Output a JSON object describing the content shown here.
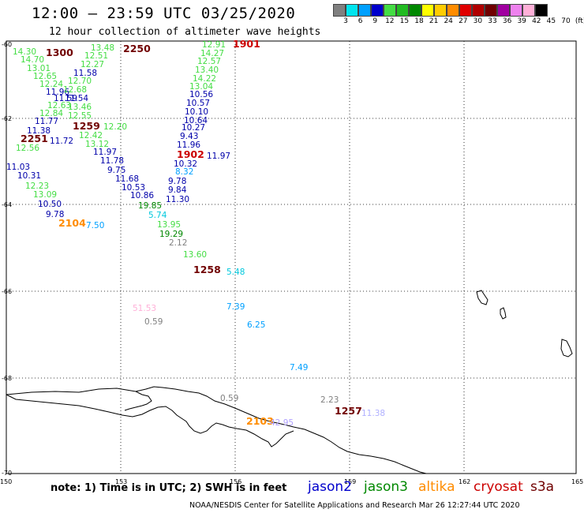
{
  "header": {
    "title": "12:00 – 23:59 UTC 03/25/2020",
    "subtitle": "12 hour collection of altimeter wave heights"
  },
  "legend": {
    "unit": "(ft)",
    "colors": [
      "#808080",
      "#00e5ee",
      "#00a0ff",
      "#0000cc",
      "#44dd44",
      "#22bb22",
      "#008800",
      "#ffff00",
      "#ffcc00",
      "#ff8c00",
      "#e00000",
      "#b00000",
      "#700000",
      "#a000a0",
      "#ee82ee",
      "#ffb0d8",
      "#000000"
    ],
    "labels": [
      "3",
      "6",
      "9",
      "12",
      "15",
      "18",
      "21",
      "24",
      "27",
      "30",
      "33",
      "36",
      "39",
      "42",
      "45",
      "70"
    ]
  },
  "axes": {
    "y_labels": [
      "-60",
      "-62",
      "-64",
      "-66",
      "-68",
      "-70"
    ],
    "x_labels": [
      "150",
      "153",
      "156",
      "159",
      "162",
      "165"
    ]
  },
  "map_labels": [
    {
      "t": "14.30",
      "c": "#44dd44"
    },
    {
      "t": "1300",
      "c": "#700000",
      "b": true
    },
    {
      "t": "13.48",
      "c": "#44dd44"
    },
    {
      "t": "2250",
      "c": "#700000",
      "b": true
    },
    {
      "t": "12.91",
      "c": "#44dd44"
    },
    {
      "t": "1901",
      "c": "#cc0000",
      "b": true
    },
    {
      "t": "14.70",
      "c": "#44dd44"
    },
    {
      "t": "12.51",
      "c": "#44dd44"
    },
    {
      "t": "14.27",
      "c": "#44dd44"
    },
    {
      "t": "13.01",
      "c": "#44dd44"
    },
    {
      "t": "12.27",
      "c": "#44dd44"
    },
    {
      "t": "12.57",
      "c": "#44dd44"
    },
    {
      "t": "12.65",
      "c": "#44dd44"
    },
    {
      "t": "11.58",
      "c": "#0000aa"
    },
    {
      "t": "13.40",
      "c": "#44dd44"
    },
    {
      "t": "12.24",
      "c": "#44dd44"
    },
    {
      "t": "12.70",
      "c": "#44dd44"
    },
    {
      "t": "14.22",
      "c": "#44dd44"
    },
    {
      "t": "11.96",
      "c": "#0000aa"
    },
    {
      "t": "12.68",
      "c": "#44dd44"
    },
    {
      "t": "13.04",
      "c": "#44dd44"
    },
    {
      "t": "11.59",
      "c": "#0000aa"
    },
    {
      "t": "11.54",
      "c": "#0000aa"
    },
    {
      "t": "10.56",
      "c": "#0000aa"
    },
    {
      "t": "12.63",
      "c": "#44dd44"
    },
    {
      "t": "13.46",
      "c": "#44dd44"
    },
    {
      "t": "10.57",
      "c": "#0000aa"
    },
    {
      "t": "12.84",
      "c": "#44dd44"
    },
    {
      "t": "12.55",
      "c": "#44dd44"
    },
    {
      "t": "10.10",
      "c": "#0000aa"
    },
    {
      "t": "11.77",
      "c": "#0000aa"
    },
    {
      "t": "10.64",
      "c": "#0000aa"
    },
    {
      "t": "11.38",
      "c": "#0000aa"
    },
    {
      "t": "1259",
      "c": "#700000",
      "b": true
    },
    {
      "t": "12.20",
      "c": "#44dd44"
    },
    {
      "t": "10.27",
      "c": "#0000aa"
    },
    {
      "t": "2251",
      "c": "#700000",
      "b": true
    },
    {
      "t": "11.72",
      "c": "#0000aa"
    },
    {
      "t": "12.42",
      "c": "#44dd44"
    },
    {
      "t": "9.43",
      "c": "#0000aa"
    },
    {
      "t": "12.56",
      "c": "#44dd44"
    },
    {
      "t": "13.12",
      "c": "#44dd44"
    },
    {
      "t": "11.96",
      "c": "#0000aa"
    },
    {
      "t": "11.97",
      "c": "#0000aa"
    },
    {
      "t": "1902",
      "c": "#cc0000",
      "b": true
    },
    {
      "t": "11.97",
      "c": "#0000aa"
    },
    {
      "t": "11.78",
      "c": "#0000aa"
    },
    {
      "t": "10.32",
      "c": "#0000aa"
    },
    {
      "t": "11.03",
      "c": "#0000aa"
    },
    {
      "t": "9.75",
      "c": "#0000aa"
    },
    {
      "t": "8.32",
      "c": "#00a0ff"
    },
    {
      "t": "10.31",
      "c": "#0000aa"
    },
    {
      "t": "11.68",
      "c": "#0000aa"
    },
    {
      "t": "9.78",
      "c": "#0000aa"
    },
    {
      "t": "12.23",
      "c": "#44dd44"
    },
    {
      "t": "10.53",
      "c": "#0000aa"
    },
    {
      "t": "9.84",
      "c": "#0000aa"
    },
    {
      "t": "13.09",
      "c": "#44dd44"
    },
    {
      "t": "10.86",
      "c": "#0000aa"
    },
    {
      "t": "11.30",
      "c": "#0000aa"
    },
    {
      "t": "10.50",
      "c": "#0000aa"
    },
    {
      "t": "19.85",
      "c": "#008800"
    },
    {
      "t": "9.78",
      "c": "#0000aa"
    },
    {
      "t": "5.74",
      "c": "#00c8dd"
    },
    {
      "t": "2104",
      "c": "#ff8c00",
      "b": true
    },
    {
      "t": "7.50",
      "c": "#00a0ff"
    },
    {
      "t": "13.95",
      "c": "#44dd44"
    },
    {
      "t": "19.29",
      "c": "#008800"
    },
    {
      "t": "2.12",
      "c": "#808080"
    },
    {
      "t": "13.60",
      "c": "#44dd44"
    },
    {
      "t": "1258",
      "c": "#700000",
      "b": true
    },
    {
      "t": "5.48",
      "c": "#00c8dd"
    },
    {
      "t": "51.53",
      "c": "#ffb0d8"
    },
    {
      "t": "7.39",
      "c": "#00a0ff"
    },
    {
      "t": "0.59",
      "c": "#808080"
    },
    {
      "t": "6.25",
      "c": "#00a0ff"
    },
    {
      "t": "7.49",
      "c": "#00a0ff"
    },
    {
      "t": "0.59",
      "c": "#808080"
    },
    {
      "t": "2.23",
      "c": "#808080"
    },
    {
      "t": "1257",
      "c": "#700000",
      "b": true
    },
    {
      "t": "11.38",
      "c": "#b0b0ff"
    },
    {
      "t": "2103",
      "c": "#ff8c00",
      "b": true
    },
    {
      "t": "42.95",
      "c": "#b0a0ff"
    }
  ],
  "footer": {
    "note": "note:  1) Time is in UTC;  2) SWH is in feet",
    "satellites": [
      {
        "name": "jason2",
        "color": "#0000cc"
      },
      {
        "name": "jason3",
        "color": "#008800"
      },
      {
        "name": "altika",
        "color": "#ff8c00"
      },
      {
        "name": "cryosat",
        "color": "#cc0000"
      },
      {
        "name": "s3a",
        "color": "#700000"
      }
    ],
    "credit": "NOAA/NESDIS Center for Satellite Applications and Research     Mar 26 12:27:44 UTC 2020"
  }
}
